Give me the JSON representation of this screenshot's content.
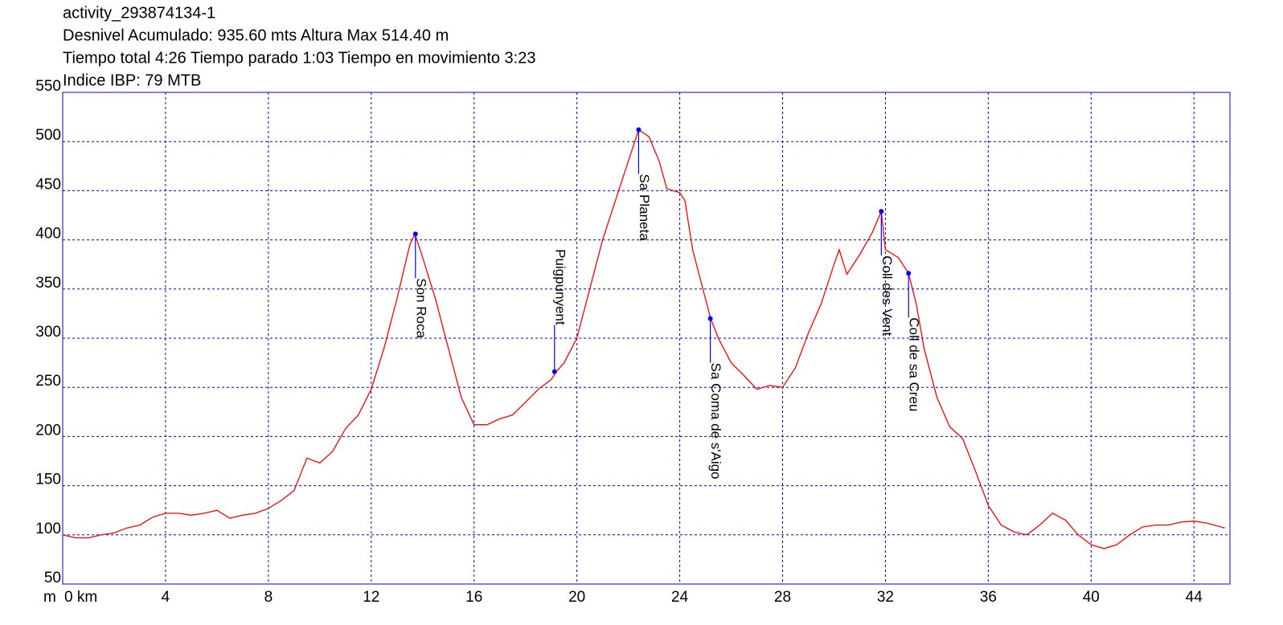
{
  "chart_data": {
    "type": "line",
    "title": "activity_293874134-1",
    "subtitle": [
      "Desnivel Acumulado: 935.60 mts  Altura Max 514.40 m",
      "Tiempo total 4:26 Tiempo parado 1:03 Tiempo en movimiento 3:23",
      "Indice IBP: 79 MTB"
    ],
    "y_label": "m",
    "xlim": [
      0,
      45.4
    ],
    "ylim": [
      50,
      550
    ],
    "xticks": [
      {
        "value": 0,
        "label": "0 km"
      },
      4,
      8,
      12,
      16,
      20,
      24,
      28,
      32,
      36,
      40,
      44
    ],
    "yticks": [
      50,
      100,
      150,
      200,
      250,
      300,
      350,
      400,
      450,
      500,
      550
    ],
    "grid": true,
    "grid_color": "#0000e0",
    "series": [
      {
        "color": "#ff0000",
        "x": [
          0,
          0.5,
          1,
          1.5,
          2,
          2.5,
          3,
          3.5,
          4,
          4.5,
          5,
          5.5,
          6,
          6.5,
          7,
          7.5,
          8,
          8.5,
          9,
          9.5,
          10,
          10.5,
          11,
          11.5,
          12,
          12.5,
          13,
          13.5,
          13.7,
          14,
          14.5,
          15,
          15.5,
          16,
          16.5,
          17,
          17.5,
          18,
          18.5,
          19,
          19.2,
          19.5,
          20,
          20.5,
          21,
          21.5,
          22,
          22.4,
          22.8,
          23.2,
          23.5,
          24,
          24.2,
          24.5,
          25,
          25.2,
          25.5,
          26,
          26.5,
          27,
          27.5,
          28,
          28.5,
          29,
          29.5,
          30,
          30.2,
          30.5,
          31,
          31.5,
          31.84,
          32,
          32.5,
          32.9,
          33.2,
          33.5,
          34,
          34.5,
          35,
          35.5,
          36,
          36.5,
          37,
          37.5,
          38,
          38.5,
          39,
          39.5,
          40,
          40.5,
          41,
          41.5,
          42,
          42.5,
          43,
          43.5,
          44,
          44.5,
          45.2
        ],
        "values": [
          100,
          97,
          97,
          100,
          102,
          107,
          110,
          118,
          122,
          122,
          120,
          122,
          125,
          117,
          120,
          122,
          127,
          135,
          145,
          178,
          173,
          185,
          208,
          222,
          248,
          290,
          340,
          395,
          406,
          382,
          340,
          290,
          240,
          212,
          212,
          218,
          222,
          235,
          248,
          258,
          266,
          275,
          300,
          350,
          400,
          440,
          480,
          512,
          505,
          480,
          452,
          448,
          440,
          390,
          340,
          320,
          300,
          275,
          262,
          248,
          252,
          250,
          270,
          305,
          335,
          375,
          390,
          365,
          385,
          408,
          429,
          390,
          382,
          366,
          335,
          290,
          240,
          210,
          198,
          165,
          130,
          110,
          103,
          100,
          110,
          122,
          115,
          100,
          90,
          86,
          90,
          100,
          108,
          110,
          110,
          113,
          114,
          112,
          107
        ]
      }
    ],
    "waypoint_color": "#0000ff",
    "annotations": [
      {
        "text": "Son Roca",
        "x": 13.72,
        "y": 406,
        "label_side": "below"
      },
      {
        "text": "Puigpunyent",
        "x": 19.13,
        "y": 266,
        "label_side": "above"
      },
      {
        "text": "Sa Planeta",
        "x": 22.4,
        "y": 512,
        "label_side": "below"
      },
      {
        "text": "Sa Coma de s'Aigo",
        "x": 25.19,
        "y": 320,
        "label_side": "below"
      },
      {
        "text": "Coll des Vent",
        "x": 31.84,
        "y": 429,
        "label_side": "below"
      },
      {
        "text": "Coll de sa Creu",
        "x": 32.9,
        "y": 366,
        "label_side": "below"
      }
    ]
  }
}
